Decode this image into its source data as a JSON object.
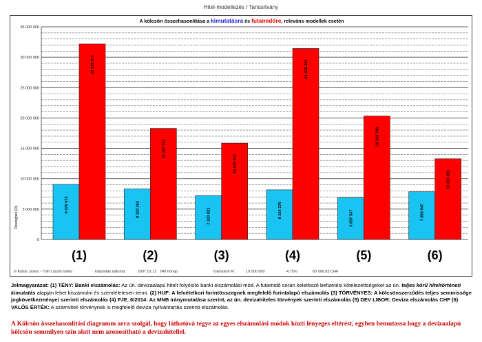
{
  "page": {
    "doc_title": "Hitel-modellezés / Tanúsítvány"
  },
  "chart_data": {
    "type": "bar",
    "title_parts": [
      {
        "text": "A kölcsön összehasonlítása a ",
        "color": "#000000"
      },
      {
        "text": "kimutatásra",
        "color": "#1f1fd6"
      },
      {
        "text": " és ",
        "color": "#000000"
      },
      {
        "text": "futamidőre",
        "color": "#e00000"
      },
      {
        "text": ", releváns modellek esetén",
        "color": "#000000"
      }
    ],
    "ylabel": "Összegben (Ft)",
    "ylim": [
      0,
      35000000
    ],
    "yticks": [
      0,
      5000000,
      10000000,
      15000000,
      20000000,
      25000000,
      30000000,
      35000000
    ],
    "ytick_labels": [
      "0",
      "5 000 000",
      "10 000 000",
      "15 000 000",
      "20 000 000",
      "25 000 000",
      "30 000 000",
      "35 000 000"
    ],
    "grid": true,
    "categories": [
      "(1)",
      "(2)",
      "(3)",
      "(4)",
      "(5)",
      "(6)"
    ],
    "series": [
      {
        "color": "#19c3f2",
        "values": [
          9076573,
          8323262,
          7223821,
          8169275,
          6897537,
          7855947
        ],
        "labels": [
          "9 076 573",
          "8 323 262",
          "7 223 821",
          "8 169 275",
          "6 897 537",
          "7 855 947"
        ]
      },
      {
        "color": "#ff0000",
        "values": [
          32175971,
          18287782,
          15839942,
          31438384,
          20320780,
          13283821
        ],
        "labels": [
          "32 175 971",
          "18 287 782",
          "15 839 942",
          "31 438 384",
          "20 320 780",
          "13 283 821"
        ]
      }
    ]
  },
  "footer": {
    "copyright": "© Kuhár János - Tóth László Gréta",
    "date_label": "folyósítás dátuma:",
    "date_value": "2007.02.12",
    "term": "240 hónap",
    "amount_label": "folyósított Ft:",
    "amount_value": "10 000 000",
    "rate": "4,75%",
    "chf": "65 006,83 CHF"
  },
  "legend": {
    "title": "Jelmagyarázat:",
    "p1_bold": "(1) TÉNY: Banki elszámolás:",
    "p1_text": " Az ún. devizaalapú hitelt folyósító banki elszámolási mód. A futamidő során keletkező befizetési kötelezettségeket az ún. ",
    "p1_italic": "teljes körű hiteltörténeti kimutatás",
    "p1_text2": " alapján lehet kiszámolni és szemléletesen tenni. ",
    "p2_bold": "(2) HUF: A felvételkori forintösszegnek megfelelő forintalapú elszámolás (3) TÖRVÉNYES: A kölcsönszerződés teljes semmissége jogkövetkezményei szerinti elszámolás (4) PJE_6/2014: Az MNB iránymutatása szerint, az ún. devizahiteles törvények szerinti elszámolás (5) DEV LIBOR: Deviza elszámolás CHF (6) VALÓS ÉRTÉK:",
    "p2_text": " A számviteli törvénynek is megfelelő deviza nyilvántartás szerinti elszámolás."
  },
  "note": "A Kölcsön összehasonlítási diagramm arra szolgál, hogy láthatóvá tegye az egyes elszámolási módok közti lényeges eltérést, egyben bemutassa hogy a devizaalapú kölcsön semmilyen szín alatt nem azonosítható a devizahitellel."
}
